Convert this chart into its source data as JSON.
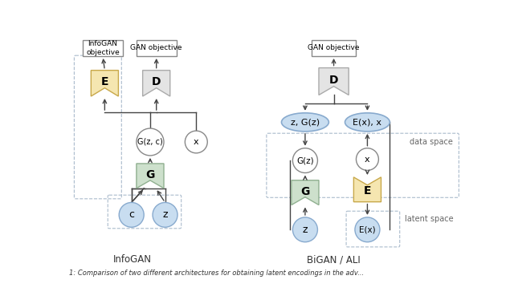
{
  "fig_width": 6.4,
  "fig_height": 3.84,
  "bg_color": "#ffffff",
  "infogan_label": "InfoGAN",
  "bigan_label": "BiGAN / ALI",
  "data_space_label": "data space",
  "latent_space_label": "latent space",
  "arrow_color": "#444444",
  "dashed_border_color": "#aabbcc",
  "green_fill": "#cde0cc",
  "green_edge": "#90b090",
  "yellow_fill": "#f5e6b0",
  "yellow_edge": "#c8a84a",
  "gray_fill": "#e4e4e4",
  "gray_edge": "#aaaaaa",
  "blue_fill": "#c8ddf0",
  "blue_edge": "#88aace",
  "white_fill": "#ffffff",
  "white_edge": "#888888",
  "rect_fill": "#ffffff",
  "rect_edge": "#888888"
}
